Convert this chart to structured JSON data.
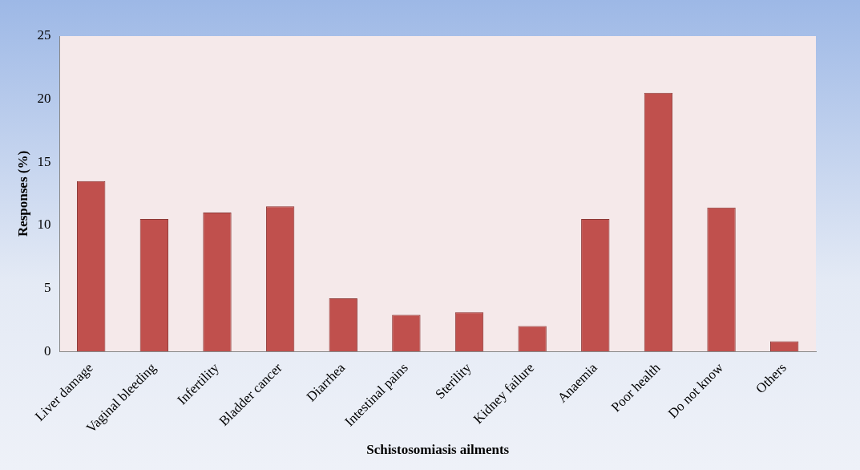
{
  "chart_data": {
    "type": "bar",
    "xlabel": "Schistosomiasis ailments",
    "ylabel": "Responses (%)",
    "categories": [
      "Liver damage",
      "Vaginal bleeding",
      "Infertility",
      "Bladder cancer",
      "Diarrhea",
      "Intestinal pains",
      "Sterility",
      "Kidney failure",
      "Anaemia",
      "Poor health",
      "Do not know",
      "Others"
    ],
    "values": [
      13.5,
      10.5,
      11,
      11.5,
      4.2,
      2.9,
      3.1,
      2,
      10.5,
      20.5,
      11.4,
      0.8
    ],
    "color": "#c0504d",
    "ylim": [
      0,
      25
    ],
    "yticks": [
      0,
      5,
      10,
      15,
      20,
      25
    ],
    "grid": false,
    "legend": false
  }
}
